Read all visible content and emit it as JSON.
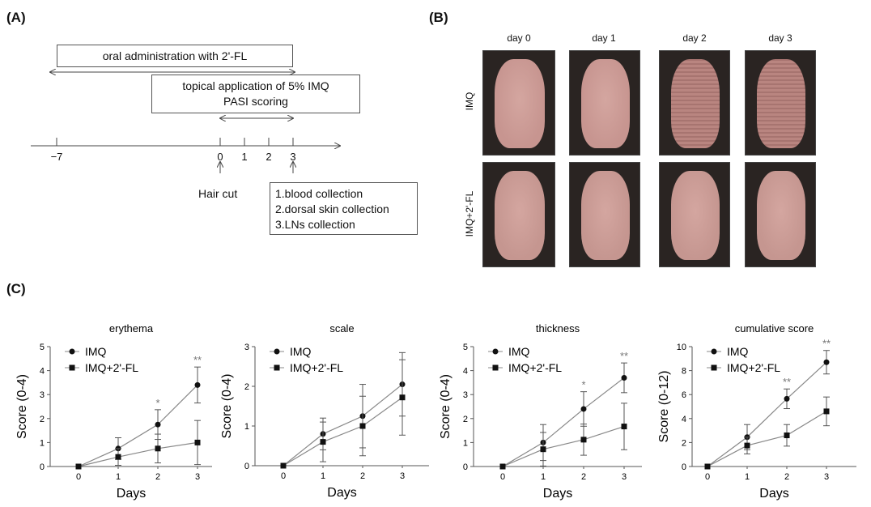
{
  "panel_a": {
    "label": "(A)",
    "oral_box": "oral administration with 2'-FL",
    "topical_line1": "topical application of 5% IMQ",
    "topical_line2": "PASI scoring",
    "timeline_ticks": [
      "−7",
      "0",
      "1",
      "2",
      "3"
    ],
    "hair_cut": "Hair cut",
    "collection": [
      "1.blood collection",
      "2.dorsal skin collection",
      "3.LNs collection"
    ]
  },
  "panel_b": {
    "label": "(B)",
    "days": [
      "day 0",
      "day 1",
      "day 2",
      "day 3"
    ],
    "rows": [
      "IMQ",
      "IMQ+2'-FL"
    ]
  },
  "panel_c": {
    "label": "(C)"
  },
  "chart_data": [
    {
      "type": "line",
      "title": "erythema",
      "xlabel": "Days",
      "ylabel": "Score (0-4)",
      "x": [
        0,
        1,
        2,
        3
      ],
      "ylim": [
        0,
        5
      ],
      "yticks": [
        0,
        1,
        2,
        3,
        4,
        5
      ],
      "series": [
        {
          "name": "IMQ",
          "marker": "circle",
          "values": [
            0,
            0.75,
            1.75,
            3.4
          ],
          "error": [
            0,
            0.45,
            0.62,
            0.75
          ]
        },
        {
          "name": "IMQ+2'-FL",
          "marker": "square",
          "values": [
            0,
            0.4,
            0.75,
            1.0
          ],
          "error": [
            0,
            0.35,
            0.6,
            0.92
          ]
        }
      ],
      "significance": [
        "",
        "",
        "*",
        "**"
      ]
    },
    {
      "type": "line",
      "title": "scale",
      "xlabel": "Days",
      "ylabel": "Score (0-4)",
      "x": [
        0,
        1,
        2,
        3
      ],
      "ylim": [
        0,
        3
      ],
      "yticks": [
        0,
        1,
        2,
        3
      ],
      "series": [
        {
          "name": "IMQ",
          "marker": "circle",
          "values": [
            0,
            0.8,
            1.25,
            2.05
          ],
          "error": [
            0,
            0.4,
            0.8,
            0.8
          ]
        },
        {
          "name": "IMQ+2'-FL",
          "marker": "square",
          "values": [
            0,
            0.6,
            1.0,
            1.72
          ],
          "error": [
            0,
            0.5,
            0.75,
            0.95
          ]
        }
      ],
      "significance": [
        "",
        "",
        "",
        ""
      ]
    },
    {
      "type": "line",
      "title": "thickness",
      "xlabel": "Days",
      "ylabel": "Score (0-4)",
      "x": [
        0,
        1,
        2,
        3
      ],
      "ylim": [
        0,
        5
      ],
      "yticks": [
        0,
        1,
        2,
        3,
        4,
        5
      ],
      "series": [
        {
          "name": "IMQ",
          "marker": "circle",
          "values": [
            0,
            1.0,
            2.4,
            3.7
          ],
          "error": [
            0,
            0.75,
            0.72,
            0.62
          ]
        },
        {
          "name": "IMQ+2'-FL",
          "marker": "square",
          "values": [
            0,
            0.72,
            1.12,
            1.67
          ],
          "error": [
            0,
            0.7,
            0.65,
            0.97
          ]
        }
      ],
      "significance": [
        "",
        "",
        "*",
        "**"
      ]
    },
    {
      "type": "line",
      "title": "cumulative score",
      "xlabel": "Days",
      "ylabel": "Score (0-12)",
      "x": [
        0,
        1,
        2,
        3
      ],
      "ylim": [
        0,
        10
      ],
      "yticks": [
        0,
        2,
        4,
        6,
        8,
        10
      ],
      "series": [
        {
          "name": "IMQ",
          "marker": "circle",
          "values": [
            0,
            2.45,
            5.65,
            8.7
          ],
          "error": [
            0,
            1.05,
            0.82,
            0.98
          ]
        },
        {
          "name": "IMQ+2'-FL",
          "marker": "square",
          "values": [
            0,
            1.75,
            2.6,
            4.6
          ],
          "error": [
            0,
            0.7,
            0.9,
            1.2
          ]
        }
      ],
      "significance": [
        "",
        "",
        "**",
        "**"
      ]
    }
  ]
}
